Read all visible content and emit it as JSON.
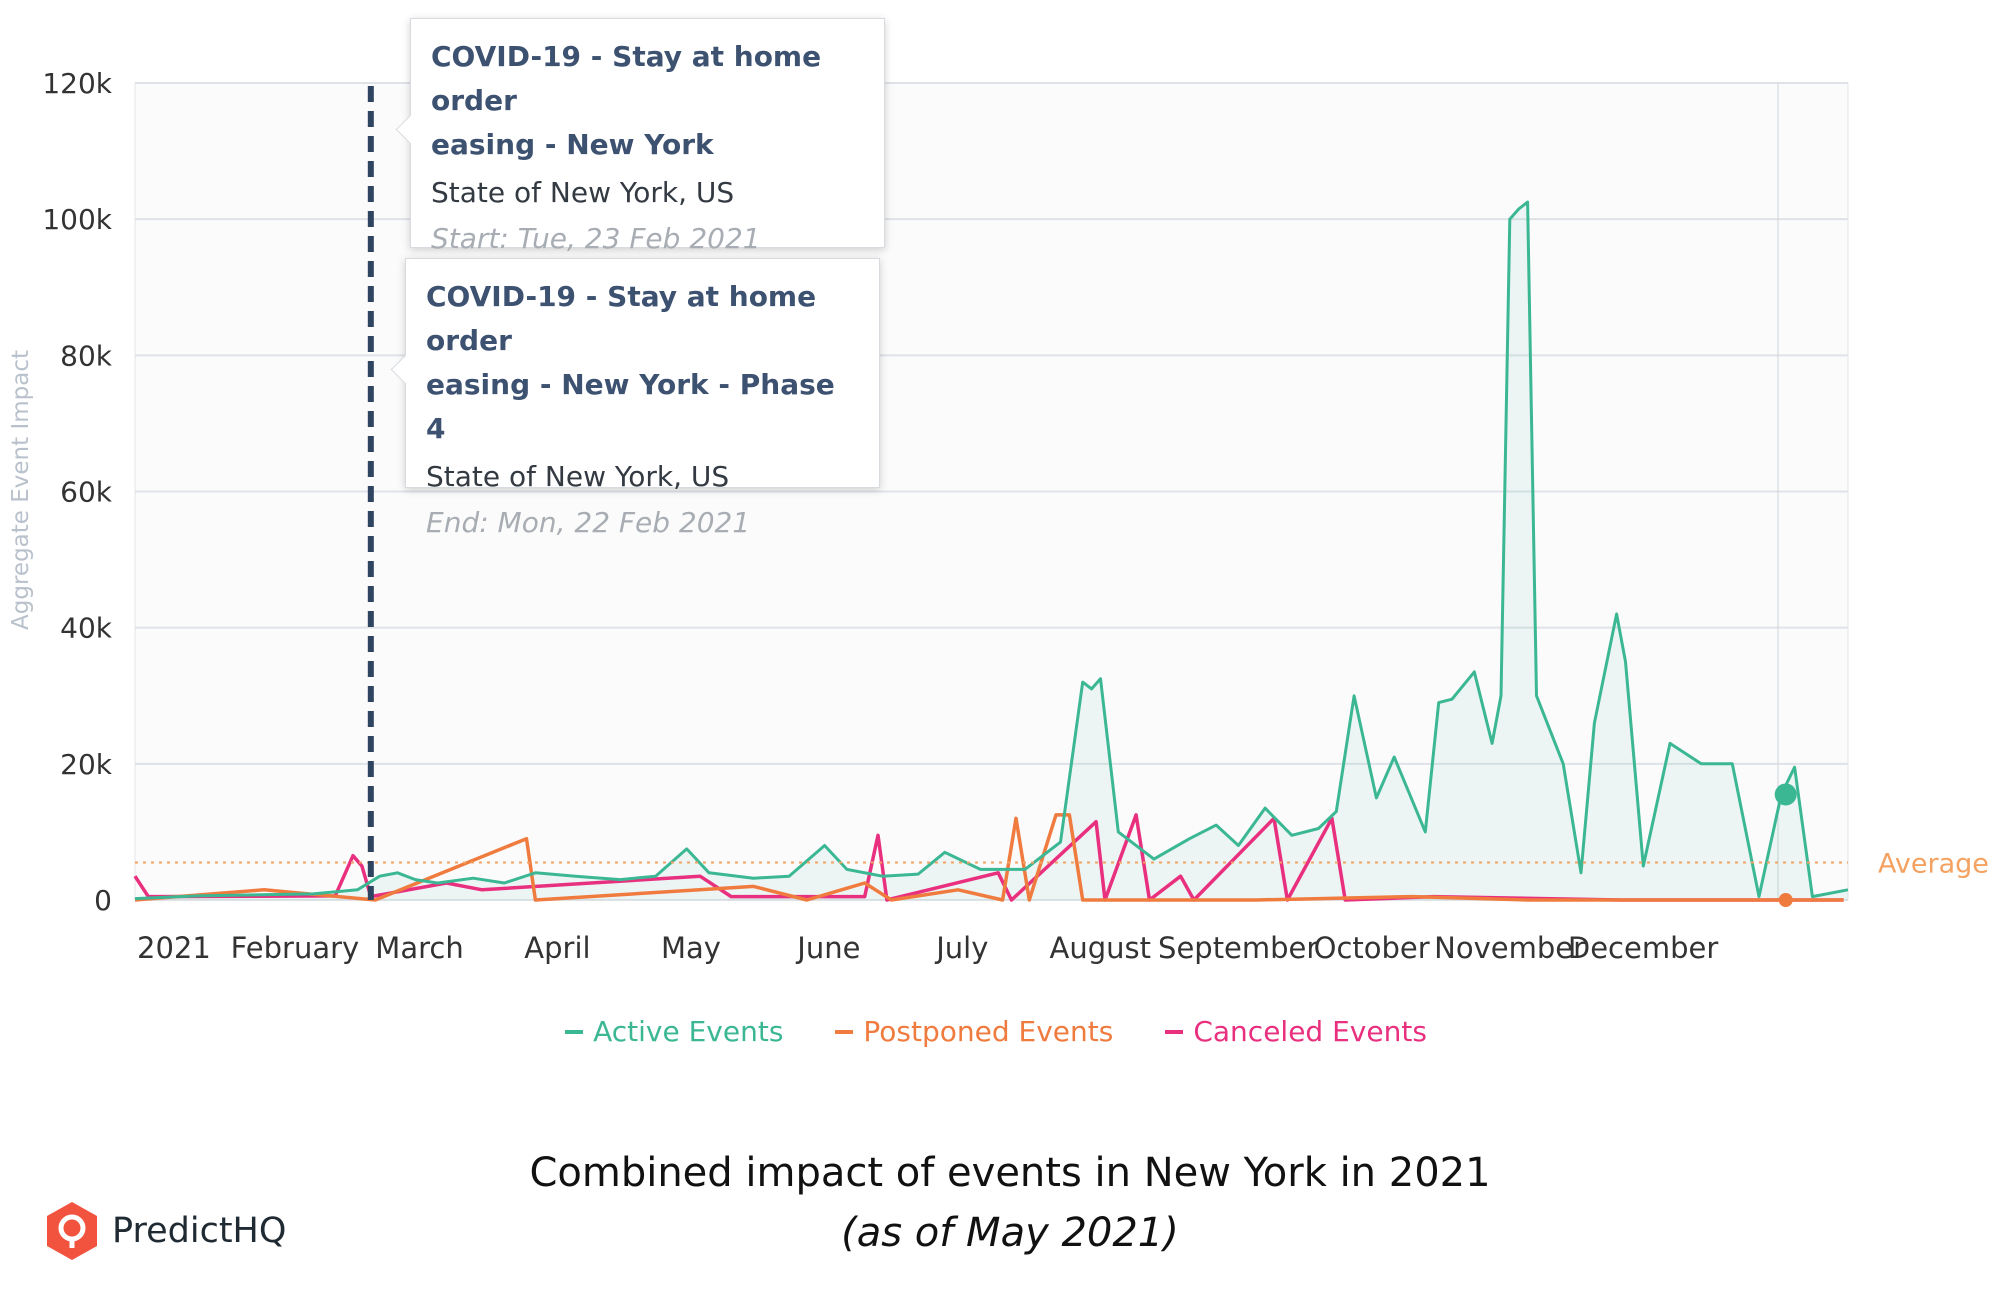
{
  "chart_data": {
    "type": "line",
    "title": "",
    "xlabel": "",
    "ylabel": "Aggregate Event Impact",
    "ylim": [
      0,
      120000
    ],
    "y_ticks": [
      "0",
      "20k",
      "40k",
      "60k",
      "80k",
      "100k",
      "120k"
    ],
    "x_ticks": [
      "2021",
      "February",
      "March",
      "April",
      "May",
      "June",
      "July",
      "August",
      "September",
      "October",
      "November",
      "December"
    ],
    "grid": true,
    "legend_position": "bottom-center",
    "average": {
      "label": "Average",
      "value": 5500,
      "color": "#f4a261"
    },
    "marker": {
      "date": "2021-02-23",
      "style": "dashed vertical line"
    },
    "series": [
      {
        "name": "Active Events",
        "color": "#3bb794",
        "points": [
          [
            "2021-01-01",
            200
          ],
          [
            "2021-01-15",
            600
          ],
          [
            "2021-02-10",
            900
          ],
          [
            "2021-02-20",
            1500
          ],
          [
            "2021-02-25",
            3500
          ],
          [
            "2021-03-01",
            4000
          ],
          [
            "2021-03-05",
            3000
          ],
          [
            "2021-03-10",
            2500
          ],
          [
            "2021-03-18",
            3200
          ],
          [
            "2021-03-25",
            2500
          ],
          [
            "2021-04-01",
            4000
          ],
          [
            "2021-04-10",
            3500
          ],
          [
            "2021-04-20",
            3000
          ],
          [
            "2021-04-28",
            3500
          ],
          [
            "2021-05-05",
            7500
          ],
          [
            "2021-05-10",
            4000
          ],
          [
            "2021-05-20",
            3200
          ],
          [
            "2021-05-28",
            3500
          ],
          [
            "2021-06-05",
            8000
          ],
          [
            "2021-06-10",
            4500
          ],
          [
            "2021-06-18",
            3500
          ],
          [
            "2021-06-26",
            3800
          ],
          [
            "2021-07-02",
            7000
          ],
          [
            "2021-07-10",
            4500
          ],
          [
            "2021-07-20",
            4500
          ],
          [
            "2021-07-28",
            8500
          ],
          [
            "2021-08-02",
            32000
          ],
          [
            "2021-08-04",
            31000
          ],
          [
            "2021-08-06",
            32500
          ],
          [
            "2021-08-10",
            10000
          ],
          [
            "2021-08-18",
            6000
          ],
          [
            "2021-08-26",
            9000
          ],
          [
            "2021-09-01",
            11000
          ],
          [
            "2021-09-06",
            8000
          ],
          [
            "2021-09-12",
            13500
          ],
          [
            "2021-09-18",
            9500
          ],
          [
            "2021-09-24",
            10500
          ],
          [
            "2021-09-28",
            13000
          ],
          [
            "2021-10-02",
            30000
          ],
          [
            "2021-10-07",
            15000
          ],
          [
            "2021-10-11",
            21000
          ],
          [
            "2021-10-18",
            10000
          ],
          [
            "2021-10-21",
            29000
          ],
          [
            "2021-10-24",
            29500
          ],
          [
            "2021-10-29",
            33500
          ],
          [
            "2021-11-02",
            23000
          ],
          [
            "2021-11-04",
            30000
          ],
          [
            "2021-11-06",
            100000
          ],
          [
            "2021-11-08",
            101500
          ],
          [
            "2021-11-10",
            102500
          ],
          [
            "2021-11-12",
            30000
          ],
          [
            "2021-11-18",
            20000
          ],
          [
            "2021-11-22",
            4000
          ],
          [
            "2021-11-25",
            26000
          ],
          [
            "2021-11-30",
            42000
          ],
          [
            "2021-12-02",
            35000
          ],
          [
            "2021-12-06",
            5000
          ],
          [
            "2021-12-12",
            23000
          ],
          [
            "2021-12-19",
            20000
          ],
          [
            "2021-12-26",
            20000
          ],
          [
            "2022-01-01",
            500
          ],
          [
            "2022-01-06",
            15500
          ],
          [
            "2022-01-09",
            19500
          ],
          [
            "2022-01-13",
            500
          ],
          [
            "2022-01-21",
            1500
          ]
        ]
      },
      {
        "name": "Postponed Events",
        "color": "#f07b3f",
        "points": [
          [
            "2021-01-01",
            0
          ],
          [
            "2021-01-30",
            1500
          ],
          [
            "2021-02-24",
            0
          ],
          [
            "2021-03-30",
            9000
          ],
          [
            "2021-04-01",
            0
          ],
          [
            "2021-05-20",
            2000
          ],
          [
            "2021-06-01",
            0
          ],
          [
            "2021-06-14",
            2500
          ],
          [
            "2021-06-20",
            0
          ],
          [
            "2021-07-05",
            1500
          ],
          [
            "2021-07-15",
            0
          ],
          [
            "2021-07-18",
            12000
          ],
          [
            "2021-07-21",
            0
          ],
          [
            "2021-07-27",
            12500
          ],
          [
            "2021-07-30",
            12500
          ],
          [
            "2021-08-02",
            0
          ],
          [
            "2021-09-10",
            0
          ],
          [
            "2021-10-15",
            500
          ],
          [
            "2021-11-10",
            0
          ],
          [
            "2022-01-20",
            0
          ]
        ]
      },
      {
        "name": "Canceled Events",
        "color": "#e8307f",
        "points": [
          [
            "2021-01-01",
            3500
          ],
          [
            "2021-01-04",
            500
          ],
          [
            "2021-02-15",
            600
          ],
          [
            "2021-02-19",
            6500
          ],
          [
            "2021-02-21",
            5000
          ],
          [
            "2021-02-23",
            500
          ],
          [
            "2021-03-12",
            2500
          ],
          [
            "2021-03-20",
            1500
          ],
          [
            "2021-05-08",
            3500
          ],
          [
            "2021-05-15",
            500
          ],
          [
            "2021-06-14",
            500
          ],
          [
            "2021-06-17",
            9500
          ],
          [
            "2021-06-19",
            0
          ],
          [
            "2021-07-14",
            4000
          ],
          [
            "2021-07-17",
            0
          ],
          [
            "2021-08-05",
            11500
          ],
          [
            "2021-08-07",
            0
          ],
          [
            "2021-08-14",
            12500
          ],
          [
            "2021-08-17",
            0
          ],
          [
            "2021-08-24",
            3500
          ],
          [
            "2021-08-27",
            0
          ],
          [
            "2021-09-14",
            12000
          ],
          [
            "2021-09-17",
            0
          ],
          [
            "2021-09-27",
            12000
          ],
          [
            "2021-09-30",
            0
          ],
          [
            "2021-10-20",
            500
          ],
          [
            "2021-12-01",
            0
          ],
          [
            "2022-01-20",
            0
          ]
        ]
      }
    ],
    "endpoints": [
      {
        "series": "Active Events",
        "date": "2022-01-07",
        "value": 15500
      },
      {
        "series": "Postponed Events",
        "date": "2022-01-07",
        "value": 0
      }
    ]
  },
  "tooltips": [
    {
      "title_line1": "COVID-19 - Stay at home order",
      "title_line2": "easing - New York",
      "location": "State of New York, US",
      "date": "Start: Tue, 23 Feb 2021"
    },
    {
      "title_line1": "COVID-19 - Stay at home order",
      "title_line2": "easing - New York - Phase 4",
      "location": "State of New York, US",
      "date": "End: Mon, 22 Feb 2021"
    }
  ],
  "caption": {
    "line1": "Combined impact of events in New York in 2021",
    "line2": "(as of May 2021)"
  },
  "brand": {
    "name": "PredictHQ",
    "color": "#f2533f"
  }
}
